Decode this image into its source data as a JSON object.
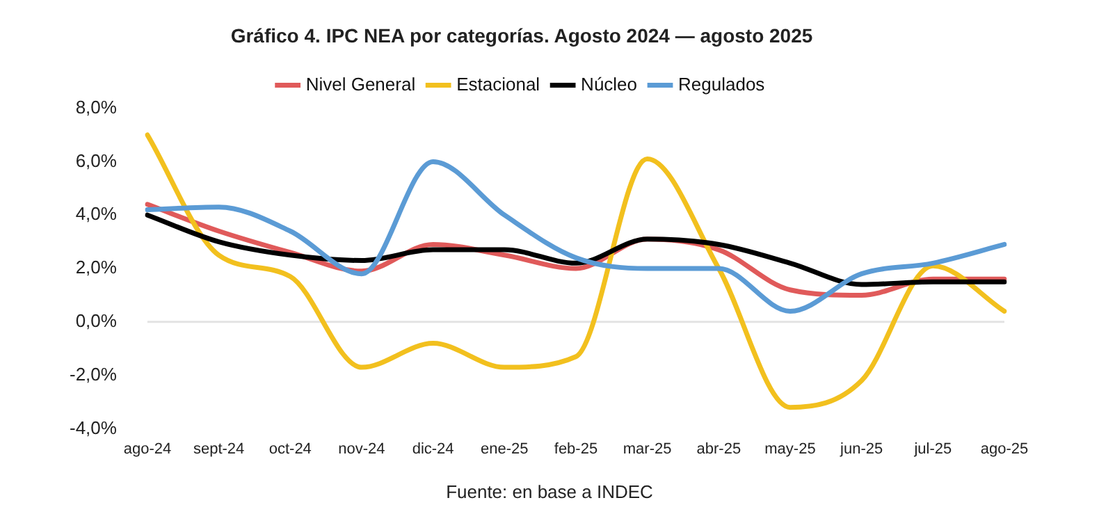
{
  "chart_data": {
    "type": "line",
    "title": "Gráfico 4. IPC NEA por categorías. Agosto 2024 — agosto 2025",
    "categories": [
      "ago-24",
      "sept-24",
      "oct-24",
      "nov-24",
      "dic-24",
      "ene-25",
      "feb-25",
      "mar-25",
      "abr-25",
      "may-25",
      "jun-25",
      "jul-25",
      "ago-25"
    ],
    "series": [
      {
        "name": "Nivel General",
        "color": "#e05a5a",
        "values": [
          4.4,
          3.4,
          2.6,
          1.9,
          2.9,
          2.5,
          2.0,
          3.1,
          2.7,
          1.2,
          1.0,
          1.6,
          1.6
        ]
      },
      {
        "name": "Estacional",
        "color": "#f2c01e",
        "values": [
          7.0,
          2.5,
          1.7,
          -1.7,
          -0.8,
          -1.7,
          -1.3,
          6.1,
          2.0,
          -3.2,
          -2.2,
          2.1,
          0.4
        ]
      },
      {
        "name": "Núcleo",
        "color": "#000000",
        "values": [
          4.0,
          3.0,
          2.5,
          2.3,
          2.7,
          2.7,
          2.2,
          3.1,
          2.9,
          2.2,
          1.4,
          1.5,
          1.5
        ]
      },
      {
        "name": "Regulados",
        "color": "#5b9bd5",
        "values": [
          4.2,
          4.3,
          3.4,
          1.8,
          6.0,
          4.0,
          2.4,
          2.0,
          2.0,
          0.4,
          1.8,
          2.2,
          2.9
        ]
      }
    ],
    "ylim": [
      -4,
      8
    ],
    "yticks": [
      {
        "value": -4,
        "label": "-4,0%"
      },
      {
        "value": -2,
        "label": "-2,0%"
      },
      {
        "value": 0,
        "label": "0,0%"
      },
      {
        "value": 2,
        "label": "2,0%"
      },
      {
        "value": 4,
        "label": "4,0%"
      },
      {
        "value": 6,
        "label": "6,0%"
      },
      {
        "value": 8,
        "label": "8,0%"
      }
    ],
    "grid": false,
    "ref_lines": [
      {
        "axis": "y",
        "value": 0,
        "color": "#e3e3e3"
      }
    ],
    "legend": "top",
    "marker": "none",
    "line_style": "solid",
    "annotations": [
      "Fuente: en base a INDEC"
    ]
  }
}
